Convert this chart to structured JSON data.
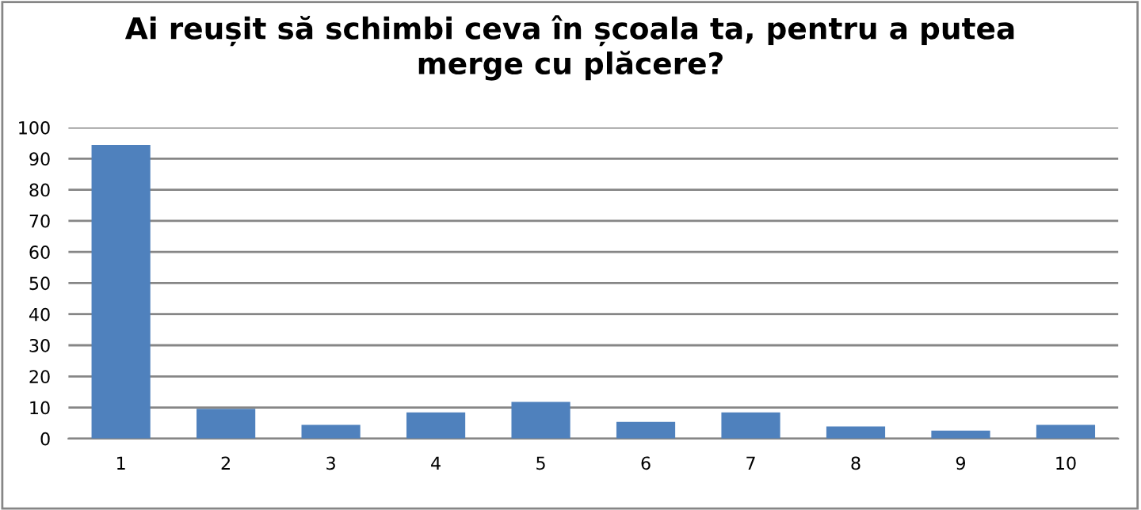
{
  "chart_data": {
    "type": "bar",
    "title": "Ai reușit să schimbi ceva în școala ta, pentru a putea\nmerge cu plăcere?",
    "categories": [
      "1",
      "2",
      "3",
      "4",
      "5",
      "6",
      "7",
      "8",
      "9",
      "10"
    ],
    "values": [
      94.4,
      9.6,
      4.4,
      8.4,
      11.8,
      5.4,
      8.4,
      3.9,
      2.6,
      4.4
    ],
    "color": "#4f81bd",
    "ylim": [
      0,
      100
    ],
    "yticks": [
      0,
      10,
      20,
      30,
      40,
      50,
      60,
      70,
      80,
      90,
      100
    ],
    "grid": "y",
    "legend": false
  }
}
